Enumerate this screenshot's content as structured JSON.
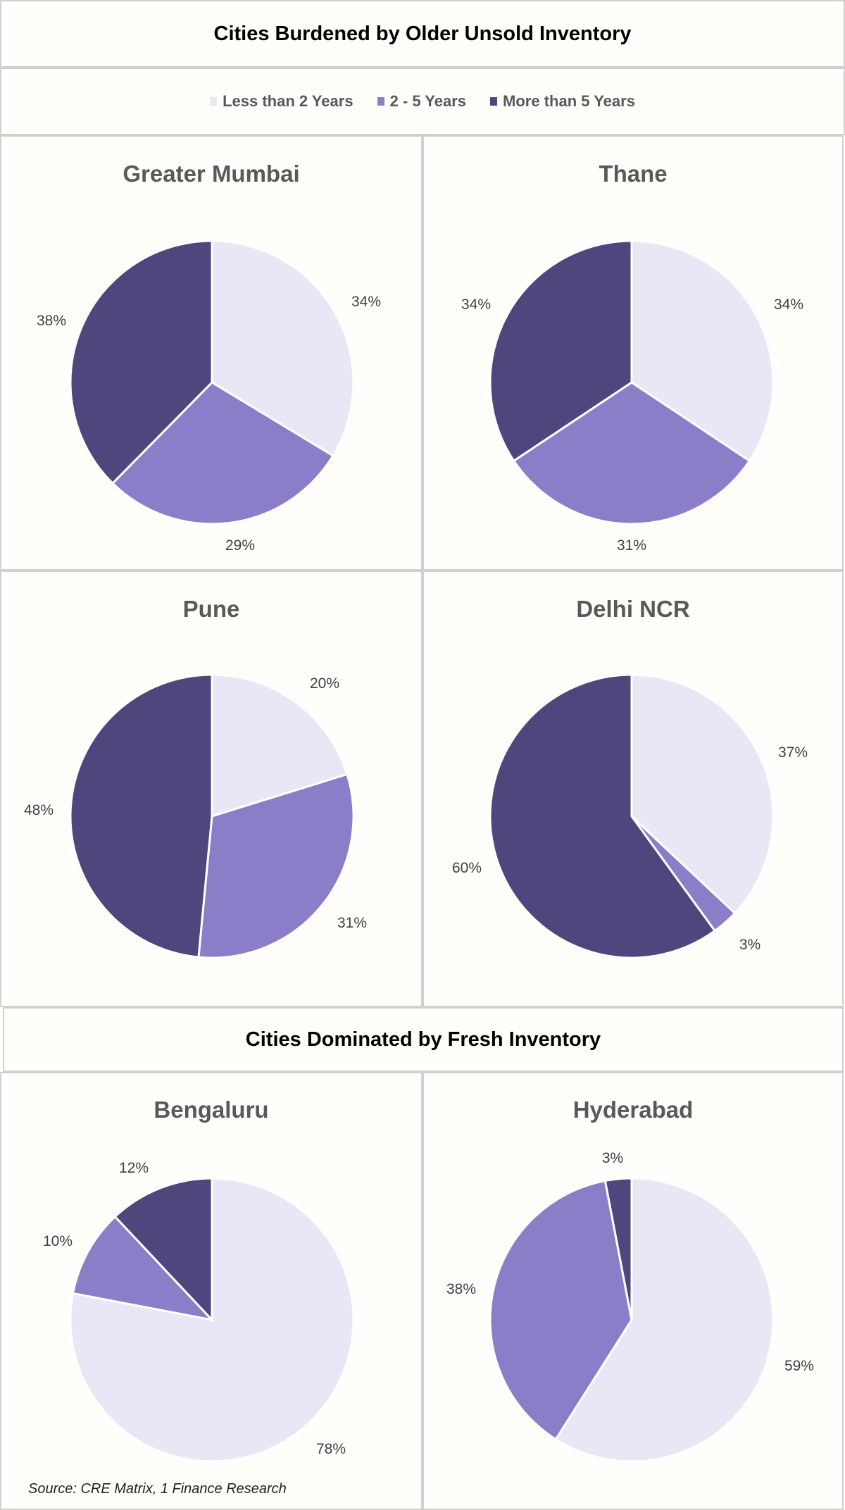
{
  "titles": {
    "older": "Cities Burdened by Older Unsold Inventory",
    "fresh": "Cities Dominated by Fresh Inventory"
  },
  "legend": [
    {
      "label": "Less than 2 Years",
      "color": "#E9E7F6"
    },
    {
      "label": "2 - 5 Years",
      "color": "#8B7EC8"
    },
    {
      "label": "More than 5 Years",
      "color": "#4F467E"
    }
  ],
  "source": "Source: CRE Matrix, 1 Finance Research",
  "chart_data": [
    {
      "type": "pie",
      "title": "Greater Mumbai",
      "categories": [
        "Less than 2 Years",
        "2 - 5 Years",
        "More than 5 Years"
      ],
      "values": [
        34,
        29,
        38
      ],
      "labels": [
        "34%",
        "29%",
        "38%"
      ]
    },
    {
      "type": "pie",
      "title": "Thane",
      "categories": [
        "Less than 2 Years",
        "2 - 5 Years",
        "More than 5 Years"
      ],
      "values": [
        34,
        31,
        34
      ],
      "labels": [
        "34%",
        "31%",
        "34%"
      ]
    },
    {
      "type": "pie",
      "title": "Pune",
      "categories": [
        "Less than 2 Years",
        "2 - 5 Years",
        "More than 5 Years"
      ],
      "values": [
        20,
        31,
        48
      ],
      "labels": [
        "20%",
        "31%",
        "48%"
      ]
    },
    {
      "type": "pie",
      "title": "Delhi NCR",
      "categories": [
        "Less than 2 Years",
        "2 - 5 Years",
        "More than 5 Years"
      ],
      "values": [
        37,
        3,
        60
      ],
      "labels": [
        "37%",
        "3%",
        "60%"
      ]
    },
    {
      "type": "pie",
      "title": "Bengaluru",
      "categories": [
        "Less than 2 Years",
        "2 - 5 Years",
        "More than 5 Years"
      ],
      "values": [
        78,
        10,
        12
      ],
      "labels": [
        "78%",
        "10%",
        "12%"
      ]
    },
    {
      "type": "pie",
      "title": "Hyderabad",
      "categories": [
        "Less than 2 Years",
        "2 - 5 Years",
        "More than 5 Years"
      ],
      "values": [
        59,
        38,
        3
      ],
      "labels": [
        "59%",
        "38%",
        "3%"
      ]
    }
  ]
}
